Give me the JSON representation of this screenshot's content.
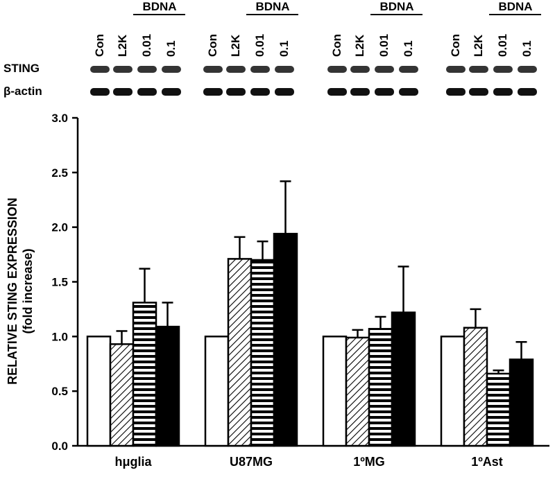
{
  "chart_data": {
    "type": "bar",
    "ylabel": [
      "RELATIVE STING EXPRESSION",
      "(fold increase)"
    ],
    "categories": [
      "hμglia",
      "U87MG",
      "1ºMG",
      "1ºAst"
    ],
    "series": [
      {
        "name": "Con",
        "color": "#ffffff",
        "pattern": "solid",
        "values": [
          1.0,
          1.0,
          1.0,
          1.0
        ],
        "errors": [
          null,
          null,
          null,
          null
        ]
      },
      {
        "name": "L2K",
        "color": "#ffffff",
        "pattern": "diagonal",
        "values": [
          0.93,
          1.71,
          0.99,
          1.08
        ],
        "errors": [
          0.12,
          0.2,
          0.07,
          0.17
        ]
      },
      {
        "name": "0.01",
        "color": "#ffffff",
        "pattern": "horizontal",
        "values": [
          1.31,
          1.7,
          1.07,
          0.66
        ],
        "errors": [
          0.31,
          0.17,
          0.11,
          0.03
        ]
      },
      {
        "name": "0.1",
        "color": "#000000",
        "pattern": "solid",
        "values": [
          1.09,
          1.94,
          1.22,
          0.79
        ],
        "errors": [
          0.22,
          0.48,
          0.42,
          0.16
        ]
      }
    ],
    "ylim": [
      0,
      3
    ],
    "yticks": [
      {
        "value": 0,
        "label": "0.0"
      },
      {
        "value": 0.5,
        "label": "0.5"
      },
      {
        "value": 1,
        "label": "1.0"
      },
      {
        "value": 1.5,
        "label": "1.5"
      },
      {
        "value": 2,
        "label": "2.0"
      },
      {
        "value": 2.5,
        "label": "2.5"
      },
      {
        "value": 3,
        "label": "3.0"
      }
    ],
    "blot": {
      "group_label": "BDNA",
      "rows": [
        "STING",
        "β-actin"
      ]
    }
  }
}
